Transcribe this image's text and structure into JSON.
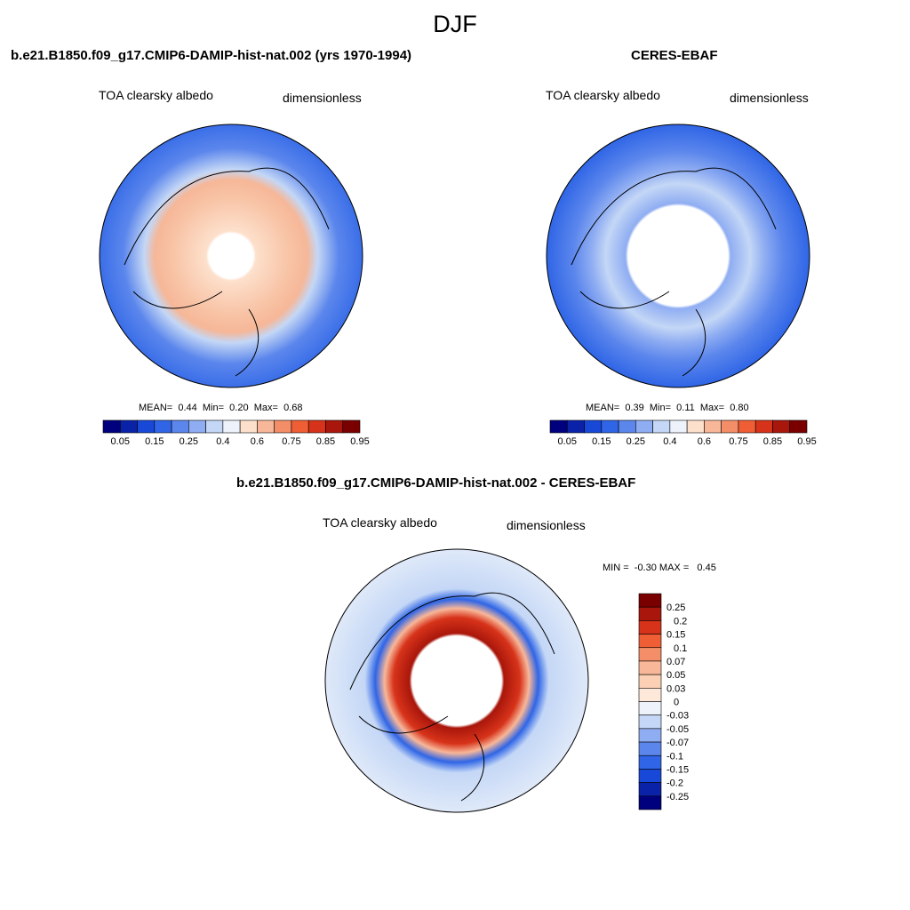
{
  "figure": {
    "title": "DJF"
  },
  "panels": {
    "model": {
      "title": "b.e21.B1850.f09_g17.CMIP6-DAMIP-hist-nat.002 (yrs 1970-1994)",
      "variable": "TOA clearsky albedo",
      "units": "dimensionless",
      "stats": {
        "mean_label": "MEAN=",
        "mean": "0.44",
        "min_label": "Min=",
        "min": "0.20",
        "max_label": "Max=",
        "max": "0.68"
      }
    },
    "obs": {
      "title": "CERES-EBAF",
      "variable": "TOA clearsky albedo",
      "units": "dimensionless",
      "stats": {
        "mean_label": "MEAN=",
        "mean": "0.39",
        "min_label": "Min=",
        "min": "0.11",
        "max_label": "Max=",
        "max": "0.80"
      }
    },
    "diff": {
      "title": "b.e21.B1850.f09_g17.CMIP6-DAMIP-hist-nat.002 - CERES-EBAF",
      "variable": "TOA clearsky albedo",
      "units": "dimensionless",
      "stats": {
        "min_label": "MIN =",
        "min": "-0.30",
        "max_label": "MAX =",
        "max": "0.45"
      }
    }
  },
  "chart_data": [
    {
      "type": "heatmap",
      "projection": "north-polar-stereographic",
      "title": "b.e21.B1850.f09_g17.CMIP6-DAMIP-hist-nat.002 (yrs 1970-1994)",
      "variable": "TOA clearsky albedo",
      "units": "dimensionless",
      "mean": 0.44,
      "min": 0.2,
      "max": 0.68,
      "colorbar": {
        "orientation": "horizontal",
        "tick_labels": [
          "0.05",
          "0.15",
          "0.25",
          "0.4",
          "0.6",
          "0.75",
          "0.85",
          "0.95"
        ],
        "colors": [
          "#00007f",
          "#0a22a8",
          "#1848d8",
          "#2f65e6",
          "#5b86ec",
          "#8fadf2",
          "#c4d7f6",
          "#eef3fb",
          "#fde0cc",
          "#f8b799",
          "#f38e68",
          "#ef5e34",
          "#d7331a",
          "#a9160b",
          "#7a0000"
        ]
      }
    },
    {
      "type": "heatmap",
      "projection": "north-polar-stereographic",
      "title": "CERES-EBAF",
      "variable": "TOA clearsky albedo",
      "units": "dimensionless",
      "mean": 0.39,
      "min": 0.11,
      "max": 0.8,
      "colorbar": {
        "orientation": "horizontal",
        "tick_labels": [
          "0.05",
          "0.15",
          "0.25",
          "0.4",
          "0.6",
          "0.75",
          "0.85",
          "0.95"
        ],
        "colors": [
          "#00007f",
          "#0a22a8",
          "#1848d8",
          "#2f65e6",
          "#5b86ec",
          "#8fadf2",
          "#c4d7f6",
          "#eef3fb",
          "#fde0cc",
          "#f8b799",
          "#f38e68",
          "#ef5e34",
          "#d7331a",
          "#a9160b",
          "#7a0000"
        ]
      }
    },
    {
      "type": "heatmap",
      "projection": "north-polar-stereographic",
      "title": "b.e21.B1850.f09_g17.CMIP6-DAMIP-hist-nat.002 - CERES-EBAF",
      "variable": "TOA clearsky albedo",
      "units": "dimensionless",
      "min": -0.3,
      "max": 0.45,
      "colorbar": {
        "orientation": "vertical",
        "tick_labels": [
          "0.25",
          "0.2",
          "0.15",
          "0.1",
          "0.07",
          "0.05",
          "0.03",
          "0",
          "-0.03",
          "-0.05",
          "-0.07",
          "-0.1",
          "-0.15",
          "-0.2",
          "-0.25"
        ],
        "colors": [
          "#7a0000",
          "#a9160b",
          "#d7331a",
          "#ef5e34",
          "#f38e68",
          "#f8b799",
          "#fbd0b4",
          "#fde8da",
          "#eef3fb",
          "#c4d7f6",
          "#8fadf2",
          "#5b86ec",
          "#2f65e6",
          "#1848d8",
          "#0a22a8",
          "#00007f"
        ]
      }
    }
  ]
}
